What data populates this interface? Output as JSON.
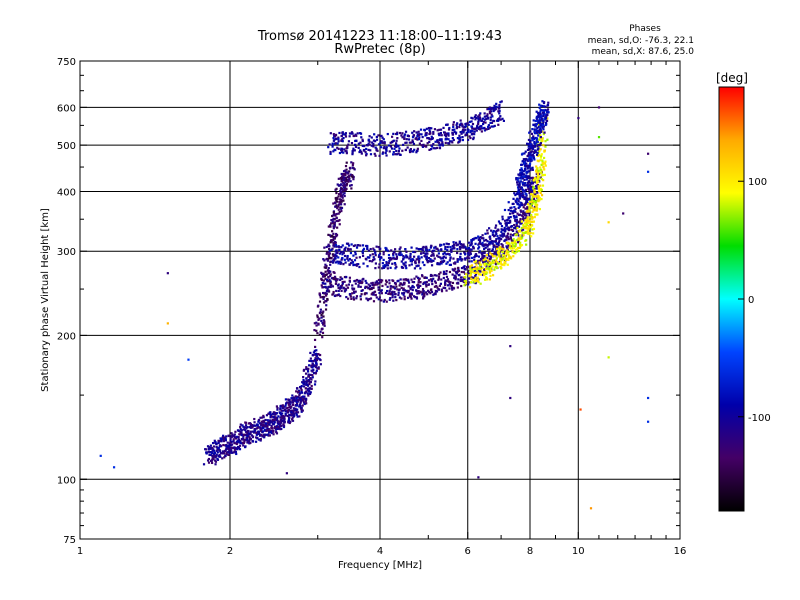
{
  "chart_data": {
    "type": "scatter",
    "title": "Tromsø 20141223 11:18:00–11:19:43",
    "subtitle": "RwPretec (8p)",
    "xlabel": "Frequency [MHz]",
    "ylabel": "Stationary phase Virtual Height [km]",
    "x_scale": "log",
    "y_scale": "log",
    "xlim": [
      1,
      16
    ],
    "ylim": [
      75,
      750
    ],
    "x_ticks": [
      1,
      2,
      4,
      6,
      8,
      10,
      16
    ],
    "x_tick_labels": [
      "1",
      "2",
      "4",
      "6",
      "8",
      "10",
      "16"
    ],
    "y_ticks": [
      75,
      100,
      200,
      300,
      400,
      500,
      600,
      750
    ],
    "y_tick_labels": [
      "75",
      "100",
      "200",
      "300",
      "400",
      "500",
      "600",
      "750"
    ],
    "x_grid": [
      2,
      4,
      6,
      8,
      10
    ],
    "y_grid": [
      100,
      200,
      300,
      400,
      500,
      600
    ],
    "grid": true,
    "info_title": "Phases",
    "info_lines": [
      "mean, sd,O: -76.3, 22.1",
      "mean, sd,X: 87.6, 25.0"
    ],
    "colorbar": {
      "label": "[deg]",
      "range": [
        -180,
        180
      ],
      "ticks": [
        100,
        0,
        -100
      ],
      "tick_labels": [
        "100",
        "0",
        "-100"
      ],
      "colors": [
        "#ff0000",
        "#ffaa00",
        "#ffff00",
        "#00dd00",
        "#00ffff",
        "#0044ff",
        "#0000aa",
        "#440066",
        "#000000"
      ]
    },
    "traces": [
      {
        "name": "",
        "x": [
          1.8,
          1.9,
          2.0,
          2.1,
          2.2,
          2.3,
          2.4,
          2.5,
          2.6,
          2.7,
          2.8,
          2.9,
          3.0
        ],
        "y": [
          112,
          115,
          118,
          122,
          125,
          128,
          130,
          133,
          138,
          142,
          150,
          165,
          185
        ],
        "phase": -110
      },
      {
        "name": "",
        "x": [
          3.0,
          3.1,
          3.2,
          3.3,
          3.4,
          3.5
        ],
        "y": [
          200,
          260,
          320,
          380,
          420,
          440
        ],
        "phase": -130
      },
      {
        "name": "",
        "x": [
          3.1,
          3.4,
          3.8,
          4.2,
          4.6,
          5.0,
          5.5,
          6.0,
          6.5,
          7.0,
          7.5,
          8.0,
          8.3
        ],
        "y": [
          260,
          252,
          248,
          248,
          250,
          254,
          260,
          268,
          280,
          300,
          330,
          380,
          430
        ],
        "phase": -120
      },
      {
        "name": "",
        "x": [
          3.2,
          3.5,
          4.0,
          4.5,
          5.0,
          5.5,
          6.0,
          6.5,
          7.0,
          7.5,
          8.0
        ],
        "y": [
          300,
          295,
          290,
          290,
          292,
          296,
          300,
          310,
          330,
          370,
          420
        ],
        "phase": -100
      },
      {
        "name": "",
        "x": [
          3.2,
          3.5,
          4.0,
          4.5,
          5.0,
          5.5,
          6.0,
          6.5,
          7.0
        ],
        "y": [
          505,
          505,
          500,
          505,
          515,
          525,
          540,
          560,
          590
        ],
        "phase": -105
      },
      {
        "name": "",
        "x": [
          6.0,
          6.5,
          7.0,
          7.5,
          8.0,
          8.2,
          8.4,
          8.5
        ],
        "y": [
          265,
          275,
          290,
          310,
          340,
          380,
          450,
          550
        ],
        "phase": 95
      },
      {
        "name": "",
        "x": [
          7.6,
          7.8,
          8.0,
          8.2,
          8.4,
          8.6
        ],
        "y": [
          400,
          440,
          480,
          520,
          560,
          600
        ],
        "phase": -90
      }
    ],
    "scattered_points": [
      {
        "x": 1.1,
        "y": 112,
        "phase": -60
      },
      {
        "x": 1.17,
        "y": 106,
        "phase": -60
      },
      {
        "x": 1.5,
        "y": 270,
        "phase": -120
      },
      {
        "x": 1.5,
        "y": 212,
        "phase": 130
      },
      {
        "x": 1.65,
        "y": 178,
        "phase": -50
      },
      {
        "x": 2.6,
        "y": 103,
        "phase": -120
      },
      {
        "x": 6.3,
        "y": 101,
        "phase": -120
      },
      {
        "x": 7.3,
        "y": 190,
        "phase": -120
      },
      {
        "x": 7.3,
        "y": 148,
        "phase": -120
      },
      {
        "x": 10.0,
        "y": 570,
        "phase": -120
      },
      {
        "x": 10.1,
        "y": 140,
        "phase": 160
      },
      {
        "x": 10.6,
        "y": 87,
        "phase": 140
      },
      {
        "x": 11.0,
        "y": 600,
        "phase": -130
      },
      {
        "x": 11.0,
        "y": 520,
        "phase": 60
      },
      {
        "x": 11.5,
        "y": 345,
        "phase": 110
      },
      {
        "x": 11.5,
        "y": 180,
        "phase": 80
      },
      {
        "x": 12.3,
        "y": 360,
        "phase": -130
      },
      {
        "x": 13.8,
        "y": 480,
        "phase": -130
      },
      {
        "x": 13.8,
        "y": 440,
        "phase": -60
      },
      {
        "x": 13.8,
        "y": 148,
        "phase": -60
      },
      {
        "x": 13.8,
        "y": 132,
        "phase": -60
      }
    ]
  }
}
